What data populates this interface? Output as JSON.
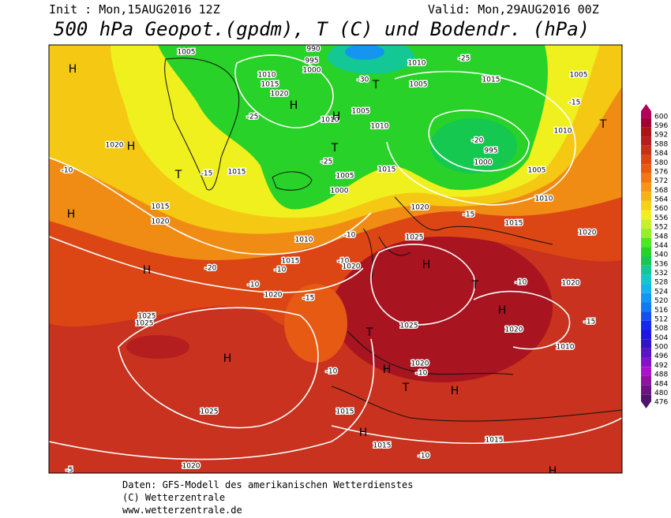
{
  "header": {
    "init": "Init : Mon,15AUG2016 12Z",
    "valid": "Valid: Mon,29AUG2016 00Z",
    "title": "500 hPa Geopot.(gpdm), T (C) und Bodendr. (hPa)"
  },
  "map": {
    "labels": [
      "H",
      "1005",
      "990",
      "995",
      "1000",
      "1010",
      "1015",
      "1020",
      "H",
      "1010",
      "1005",
      "-30",
      "T",
      "1015",
      "1005",
      "-25",
      "1005",
      "1010",
      "H",
      "1010",
      "-25",
      "T",
      "-25",
      "1020",
      "H",
      "-10",
      "T",
      "-15",
      "1015",
      "1005",
      "1000",
      "1015",
      "-20",
      "995",
      "1000",
      "1005",
      "1010",
      "T",
      "-15",
      "1015",
      "1020",
      "H",
      "1010",
      "-10",
      "1025",
      "1020",
      "-15",
      "1015",
      "1010",
      "1020",
      "1015",
      "-10",
      "-20",
      "H",
      "-10",
      "1020",
      "-15",
      "-10",
      "1020",
      "H",
      "T",
      "H",
      "-10",
      "1020",
      "1025",
      "1025",
      "T",
      "1025",
      "1020",
      "-15",
      "1010",
      "H",
      "-10",
      "H",
      "1020",
      "-10",
      "T",
      "H",
      "1025",
      "1015",
      "H",
      "1015",
      "-10",
      "1015",
      "1020",
      "-5",
      "H"
    ]
  },
  "colorbar": {
    "ticks": [
      600,
      596,
      592,
      588,
      584,
      580,
      576,
      572,
      568,
      564,
      560,
      556,
      552,
      548,
      544,
      540,
      536,
      532,
      528,
      524,
      520,
      516,
      512,
      508,
      504,
      500,
      496,
      492,
      488,
      484,
      480,
      476
    ],
    "colors": [
      "#b4005a",
      "#a00032",
      "#aa1414",
      "#b41e1e",
      "#c83214",
      "#dc4614",
      "#e65a14",
      "#f07814",
      "#f59614",
      "#f5b414",
      "#f5d214",
      "#f0f01e",
      "#c8f028",
      "#96f028",
      "#50e628",
      "#28d228",
      "#14c850",
      "#14c896",
      "#14c8c8",
      "#14b4e6",
      "#1496f0",
      "#1478f0",
      "#1450f0",
      "#1428f0",
      "#1e14e6",
      "#3214c8",
      "#5a14c8",
      "#8214c8",
      "#aa14c8",
      "#8c14a0",
      "#6e1482",
      "#50146e"
    ]
  },
  "footer": {
    "lines": [
      "Daten: GFS-Modell des amerikanischen Wetterdienstes",
      "(C) Wetterzentrale",
      "www.wetterzentrale.de"
    ]
  }
}
